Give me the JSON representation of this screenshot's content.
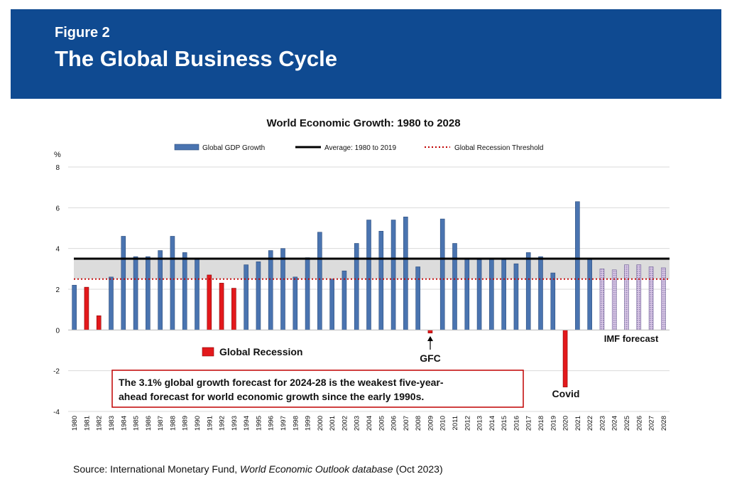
{
  "header": {
    "figure_label": "Figure 2",
    "title": "The Global Business Cycle"
  },
  "source": {
    "prefix": "Source: International Monetary Fund, ",
    "italic": "World Economic Outlook database",
    "suffix": " (Oct 2023)"
  },
  "colors": {
    "header_bg": "#0f4a91",
    "bar_blue": "#4a74b0",
    "bar_red": "#e3191c",
    "band_gray": "#dcdcdc",
    "average_line": "#000000",
    "threshold_line": "#c00000",
    "callout_border": "#c00000"
  },
  "chart_data": {
    "type": "bar",
    "title": "World Economic Growth: 1980 to 2028",
    "ylabel": "%",
    "ylim": [
      -4,
      8
    ],
    "yticks": [
      "8",
      "6",
      "4",
      "2",
      "0",
      "-2",
      "-4"
    ],
    "categories": [
      "1980",
      "1981",
      "1982",
      "1983",
      "1984",
      "1985",
      "1986",
      "1987",
      "1988",
      "1989",
      "1990",
      "1991",
      "1992",
      "1993",
      "1994",
      "1995",
      "1996",
      "1997",
      "1998",
      "1999",
      "2000",
      "2001",
      "2002",
      "2003",
      "2004",
      "2005",
      "2006",
      "2007",
      "2008",
      "2009",
      "2010",
      "2011",
      "2012",
      "2013",
      "2014",
      "2015",
      "2016",
      "2017",
      "2018",
      "2019",
      "2020",
      "2021",
      "2022",
      "2023",
      "2024",
      "2025",
      "2026",
      "2027",
      "2028"
    ],
    "values": [
      2.2,
      2.1,
      0.7,
      2.6,
      4.6,
      3.6,
      3.6,
      3.9,
      4.6,
      3.8,
      3.5,
      2.7,
      2.3,
      2.05,
      3.2,
      3.35,
      3.9,
      4.0,
      2.6,
      3.55,
      4.8,
      2.5,
      2.9,
      4.25,
      5.4,
      4.85,
      5.4,
      5.55,
      3.1,
      -0.15,
      5.45,
      4.25,
      3.5,
      3.45,
      3.5,
      3.45,
      3.25,
      3.8,
      3.6,
      2.8,
      -2.8,
      6.3,
      3.5,
      3.0,
      2.95,
      3.2,
      3.2,
      3.1,
      3.05
    ],
    "recession_years": [
      "1981",
      "1982",
      "1991",
      "1992",
      "1993",
      "2009",
      "2020"
    ],
    "forecast_from": "2023",
    "grid": true,
    "legend": {
      "gdp": "Global GDP Growth",
      "average": "Average: 1980 to 2019",
      "threshold": "Global Recession Threshold",
      "recession": "Global Recession"
    },
    "average_value": 3.5,
    "threshold_value": 2.5,
    "annotations": {
      "gfc": "GFC",
      "covid": "Covid",
      "imf_forecast": "IMF forecast",
      "callout_line1": "The 3.1% global growth forecast for 2024-28 is the weakest five-year-",
      "callout_line2": "ahead forecast for world economic growth since the early 1990s."
    }
  }
}
